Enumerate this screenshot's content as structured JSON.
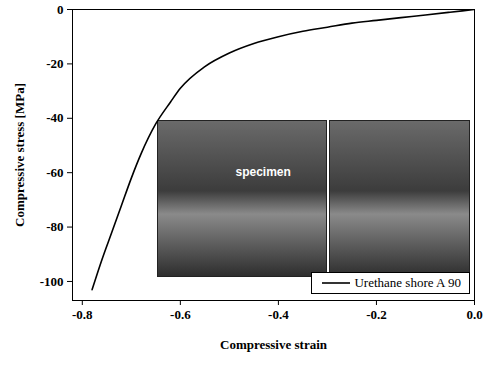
{
  "chart_data": {
    "type": "line",
    "xlabel": "Compressive strain",
    "ylabel": "Compressive stress [MPa]",
    "series": [
      {
        "name": "Urethane shore A 90",
        "color": "#000000",
        "x": [
          0,
          -0.05,
          -0.1,
          -0.15,
          -0.2,
          -0.25,
          -0.3,
          -0.35,
          -0.4,
          -0.45,
          -0.5,
          -0.55,
          -0.6,
          -0.62,
          -0.65,
          -0.68,
          -0.7,
          -0.72,
          -0.74,
          -0.76,
          -0.78
        ],
        "values": [
          0,
          -1,
          -2,
          -3,
          -4,
          -5,
          -6.5,
          -8,
          -10,
          -12.5,
          -16,
          -21,
          -29,
          -34,
          -42,
          -53,
          -62,
          -72,
          -82,
          -92,
          -103
        ]
      }
    ],
    "xlim": [
      -0.82,
      0
    ],
    "ylim": [
      -107,
      0
    ],
    "xticks": [
      -0.8,
      -0.6,
      -0.4,
      -0.2,
      {
        "value": 0,
        "label": "0.0"
      }
    ],
    "yticks": [
      0,
      -20,
      -40,
      -60,
      -80,
      -100
    ],
    "annotations": [
      {
        "text": "specimen",
        "x": -0.43,
        "y": -60
      }
    ],
    "legend": "lower right",
    "grid": false
  }
}
